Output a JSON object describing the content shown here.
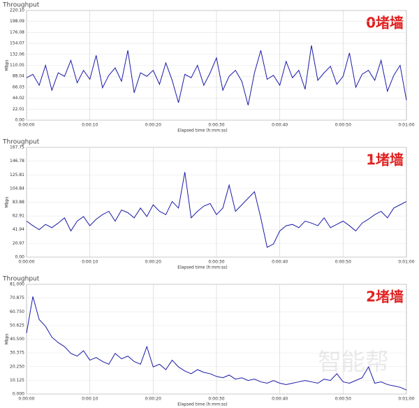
{
  "chart_data": [
    {
      "type": "line",
      "title": "Throughput",
      "annotation": "0堵墙",
      "xlabel": "Elapsed time (h:mm:ss)",
      "ylabel": "Mbps",
      "x": [
        0,
        1,
        2,
        3,
        4,
        5,
        6,
        7,
        8,
        9,
        10,
        11,
        12,
        13,
        14,
        15,
        16,
        17,
        18,
        19,
        20,
        21,
        22,
        23,
        24,
        25,
        26,
        27,
        28,
        29,
        30,
        31,
        32,
        33,
        34,
        35,
        36,
        37,
        38,
        39,
        40,
        41,
        42,
        43,
        44,
        45,
        46,
        47,
        48,
        49,
        50,
        51,
        52,
        53,
        54,
        55,
        56,
        57,
        58,
        59,
        60
      ],
      "xlim": [
        0,
        60
      ],
      "xticks": [
        {
          "value": 0,
          "label": "0:00:00"
        },
        {
          "value": 10,
          "label": "0:00:10"
        },
        {
          "value": 20,
          "label": "0:00:20"
        },
        {
          "value": 30,
          "label": "0:00:30"
        },
        {
          "value": 40,
          "label": "0:00:40"
        },
        {
          "value": 50,
          "label": "0:00:50"
        },
        {
          "value": 60,
          "label": "0:01:00"
        }
      ],
      "ylim": [
        0,
        220.1
      ],
      "yticks": [
        {
          "value": 0,
          "label": "0.00"
        },
        {
          "value": 22.01,
          "label": "22.01"
        },
        {
          "value": 44.02,
          "label": "44.02"
        },
        {
          "value": 66.03,
          "label": "66.03"
        },
        {
          "value": 88.04,
          "label": "88.04"
        },
        {
          "value": 110.05,
          "label": "110.05"
        },
        {
          "value": 132.06,
          "label": "132.06"
        },
        {
          "value": 154.07,
          "label": "154.07"
        },
        {
          "value": 176.08,
          "label": "176.08"
        },
        {
          "value": 198.09,
          "label": "198.09"
        },
        {
          "value": 220.1,
          "label": "220.10"
        }
      ],
      "grid": true,
      "series": [
        {
          "color": "#1a1aa8",
          "values": [
            85,
            92,
            70,
            110,
            60,
            95,
            88,
            120,
            75,
            100,
            82,
            130,
            65,
            90,
            105,
            78,
            140,
            55,
            95,
            88,
            100,
            72,
            115,
            80,
            35,
            92,
            85,
            110,
            70,
            95,
            125,
            60,
            88,
            100,
            78,
            30,
            95,
            140,
            82,
            90,
            70,
            118,
            85,
            100,
            62,
            150,
            80,
            95,
            108,
            72,
            88,
            135,
            66,
            92,
            100,
            80,
            120,
            58,
            90,
            110,
            40
          ]
        }
      ]
    },
    {
      "type": "line",
      "title": "Throughput",
      "annotation": "1堵墙",
      "xlabel": "Elapsed time (h:mm:ss)",
      "ylabel": "Mbps",
      "x": [
        0,
        1,
        2,
        3,
        4,
        5,
        6,
        7,
        8,
        9,
        10,
        11,
        12,
        13,
        14,
        15,
        16,
        17,
        18,
        19,
        20,
        21,
        22,
        23,
        24,
        25,
        26,
        27,
        28,
        29,
        30,
        31,
        32,
        33,
        34,
        35,
        36,
        37,
        38,
        39,
        40,
        41,
        42,
        43,
        44,
        45,
        46,
        47,
        48,
        49,
        50,
        51,
        52,
        53,
        54,
        55,
        56,
        57,
        58,
        59,
        60
      ],
      "xlim": [
        0,
        60
      ],
      "xticks": [
        {
          "value": 0,
          "label": "0:00:00"
        },
        {
          "value": 10,
          "label": "0:00:10"
        },
        {
          "value": 20,
          "label": "0:00:20"
        },
        {
          "value": 30,
          "label": "0:00:30"
        },
        {
          "value": 40,
          "label": "0:00:40"
        },
        {
          "value": 50,
          "label": "0:00:50"
        },
        {
          "value": 60,
          "label": "0:01:00"
        }
      ],
      "ylim": [
        0,
        167.75
      ],
      "yticks": [
        {
          "value": 0,
          "label": "0.00"
        },
        {
          "value": 20.97,
          "label": "20.97"
        },
        {
          "value": 41.94,
          "label": "41.94"
        },
        {
          "value": 62.91,
          "label": "62.91"
        },
        {
          "value": 83.88,
          "label": "83.88"
        },
        {
          "value": 104.84,
          "label": "104.84"
        },
        {
          "value": 125.81,
          "label": "125.81"
        },
        {
          "value": 146.78,
          "label": "146.78"
        },
        {
          "value": 167.75,
          "label": "167.75"
        }
      ],
      "grid": true,
      "series": [
        {
          "color": "#1a1aa8",
          "values": [
            55,
            48,
            42,
            50,
            45,
            52,
            60,
            40,
            55,
            62,
            48,
            58,
            65,
            70,
            55,
            72,
            68,
            60,
            75,
            62,
            80,
            70,
            65,
            85,
            75,
            130,
            60,
            70,
            78,
            82,
            65,
            75,
            110,
            70,
            80,
            90,
            100,
            60,
            15,
            20,
            40,
            48,
            50,
            45,
            55,
            52,
            48,
            60,
            45,
            50,
            55,
            48,
            40,
            52,
            58,
            65,
            70,
            60,
            75,
            80,
            85
          ]
        }
      ]
    },
    {
      "type": "line",
      "title": "Throughput",
      "annotation": "2堵墙",
      "xlabel": "Elapsed time (h:mm:ss)",
      "ylabel": "Mbps",
      "x": [
        0,
        1,
        2,
        3,
        4,
        5,
        6,
        7,
        8,
        9,
        10,
        11,
        12,
        13,
        14,
        15,
        16,
        17,
        18,
        19,
        20,
        21,
        22,
        23,
        24,
        25,
        26,
        27,
        28,
        29,
        30,
        31,
        32,
        33,
        34,
        35,
        36,
        37,
        38,
        39,
        40,
        41,
        42,
        43,
        44,
        45,
        46,
        47,
        48,
        49,
        50,
        51,
        52,
        53,
        54,
        55,
        56,
        57,
        58,
        59,
        60
      ],
      "xlim": [
        0,
        60
      ],
      "xticks": [
        {
          "value": 0,
          "label": "0:00:00"
        },
        {
          "value": 10,
          "label": "0:00:10"
        },
        {
          "value": 20,
          "label": "0:00:20"
        },
        {
          "value": 30,
          "label": "0:00:30"
        },
        {
          "value": 40,
          "label": "0:00:40"
        },
        {
          "value": 50,
          "label": "0:00:50"
        },
        {
          "value": 60,
          "label": "0:01:00"
        }
      ],
      "ylim": [
        0,
        81
      ],
      "yticks": [
        {
          "value": 0,
          "label": "0.000"
        },
        {
          "value": 10.125,
          "label": "10.125"
        },
        {
          "value": 20.25,
          "label": "20.250"
        },
        {
          "value": 30.375,
          "label": "30.375"
        },
        {
          "value": 40.5,
          "label": "40.500"
        },
        {
          "value": 50.625,
          "label": "50.625"
        },
        {
          "value": 60.75,
          "label": "60.750"
        },
        {
          "value": 70.875,
          "label": "70.875"
        },
        {
          "value": 81,
          "label": "81.000"
        }
      ],
      "grid": true,
      "series": [
        {
          "color": "#1a1aa8",
          "values": [
            45,
            72,
            55,
            50,
            42,
            38,
            35,
            30,
            28,
            32,
            25,
            27,
            24,
            22,
            30,
            26,
            28,
            24,
            22,
            35,
            20,
            22,
            18,
            25,
            20,
            17,
            15,
            18,
            16,
            15,
            13,
            12,
            14,
            11,
            12,
            10,
            11,
            9,
            8,
            10,
            8,
            7,
            8,
            9,
            10,
            9,
            8,
            11,
            10,
            15,
            9,
            8,
            10,
            12,
            20,
            8,
            9,
            7,
            6,
            5,
            3
          ]
        }
      ]
    }
  ],
  "watermark": "智能帮"
}
